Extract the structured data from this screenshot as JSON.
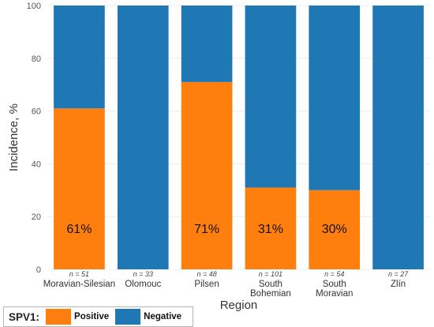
{
  "chart_data": {
    "type": "bar",
    "stacked": true,
    "categories": [
      "Moravian-Silesian",
      "Olomouc",
      "Pilsen",
      "South Bohemian",
      "South Moravian",
      "Zlín"
    ],
    "category_lines": [
      [
        "Moravian-Silesian"
      ],
      [
        "Olomouc"
      ],
      [
        "Pilsen"
      ],
      [
        "South",
        "Bohemian"
      ],
      [
        "South",
        "Moravian"
      ],
      [
        "Zlín"
      ]
    ],
    "n_labels": [
      "n = 51",
      "n = 33",
      "n = 48",
      "n = 101",
      "n = 54",
      "n = 27"
    ],
    "series": [
      {
        "name": "Positive",
        "values": [
          61,
          0,
          71,
          31,
          30,
          0
        ],
        "color": "#ff7f0e"
      },
      {
        "name": "Negative",
        "values": [
          39,
          100,
          29,
          69,
          70,
          100
        ],
        "color": "#1f77b4"
      }
    ],
    "data_labels": [
      "61%",
      "",
      "71%",
      "31%",
      "30%",
      ""
    ],
    "xlabel": "Region",
    "ylabel": "Incidence, %",
    "ylim": [
      0,
      100
    ],
    "yticks": [
      0,
      20,
      40,
      60,
      80,
      100
    ],
    "grid": true,
    "legend_position": "bottom-left"
  },
  "legend": {
    "title": "SPV1:",
    "items": [
      {
        "label": "Positive",
        "color": "#ff7f0e"
      },
      {
        "label": "Negative",
        "color": "#1f77b4"
      }
    ]
  }
}
